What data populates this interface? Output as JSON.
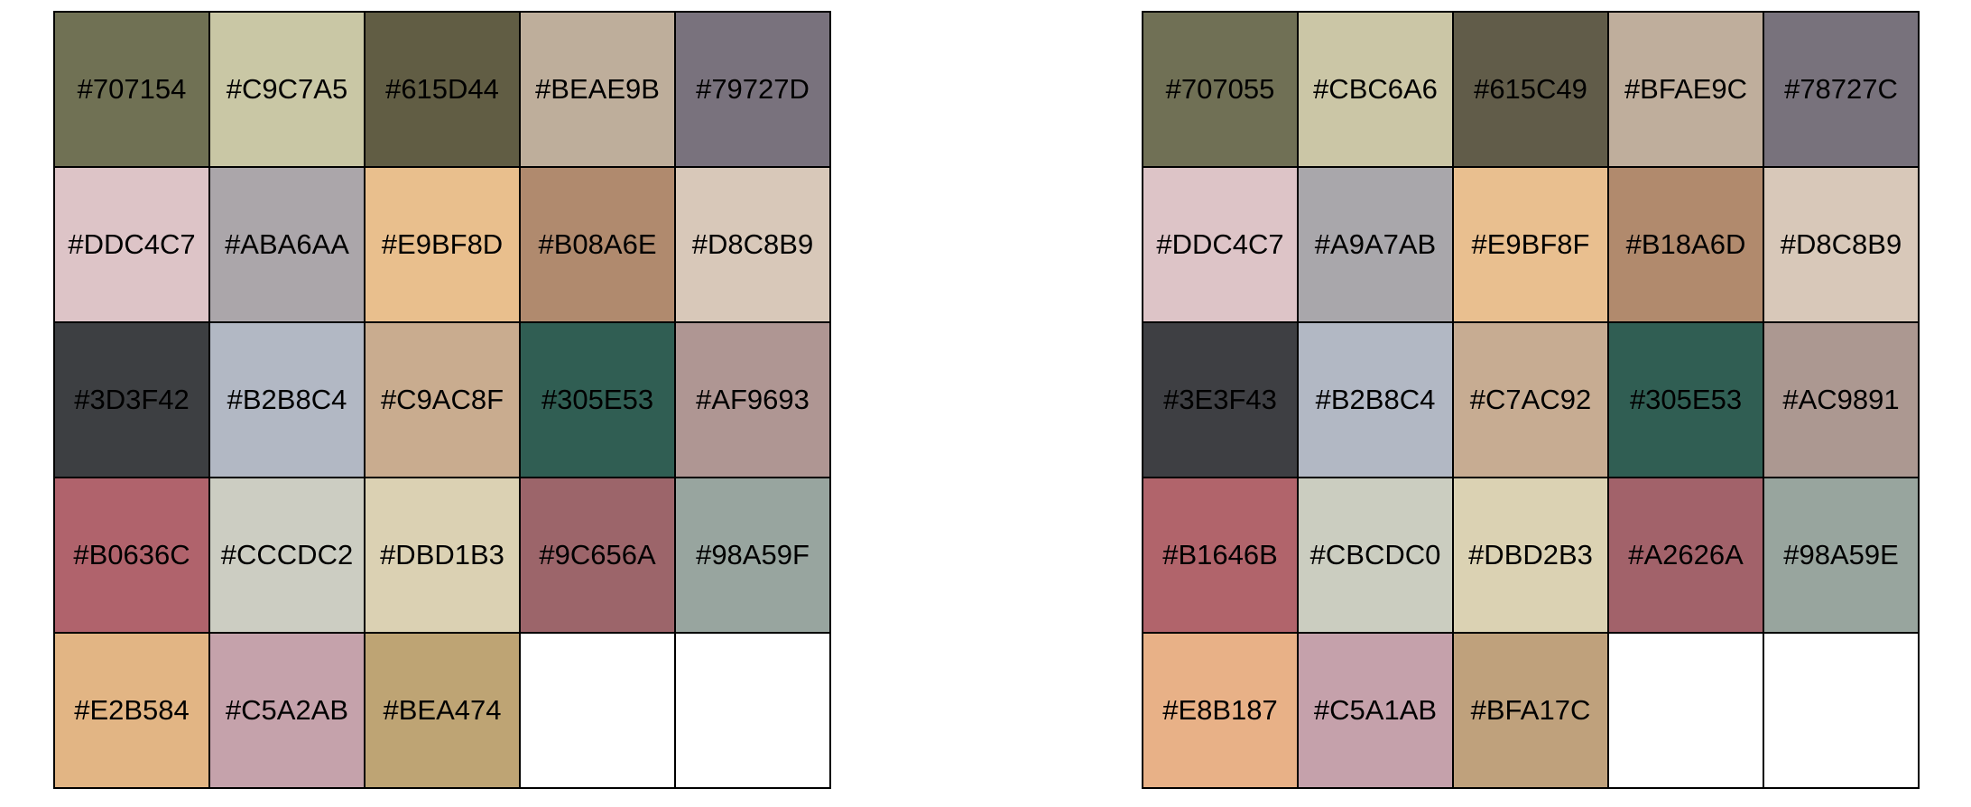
{
  "palettes": [
    {
      "colors": [
        "#707154",
        "#C9C7A5",
        "#615D44",
        "#BEAE9B",
        "#79727D",
        "#DDC4C7",
        "#ABA6AA",
        "#E9BF8D",
        "#B08A6E",
        "#D8C8B9",
        "#3D3F42",
        "#B2B8C4",
        "#C9AC8F",
        "#305E53",
        "#AF9693",
        "#B0636C",
        "#CCCDC2",
        "#DBD1B3",
        "#9C656A",
        "#98A59F",
        "#E2B584",
        "#C5A2AB",
        "#BEA474",
        "",
        ""
      ]
    },
    {
      "colors": [
        "#707055",
        "#CBC6A6",
        "#615C49",
        "#BFAE9C",
        "#78727C",
        "#DDC4C7",
        "#A9A7AB",
        "#E9BF8F",
        "#B18A6D",
        "#D8C8B9",
        "#3E3F43",
        "#B2B8C4",
        "#C7AC92",
        "#305E53",
        "#AC9891",
        "#B1646B",
        "#CBCDC0",
        "#DBD2B3",
        "#A2626A",
        "#98A59E",
        "#E8B187",
        "#C5A1AB",
        "#BFA17C",
        "",
        ""
      ]
    }
  ]
}
